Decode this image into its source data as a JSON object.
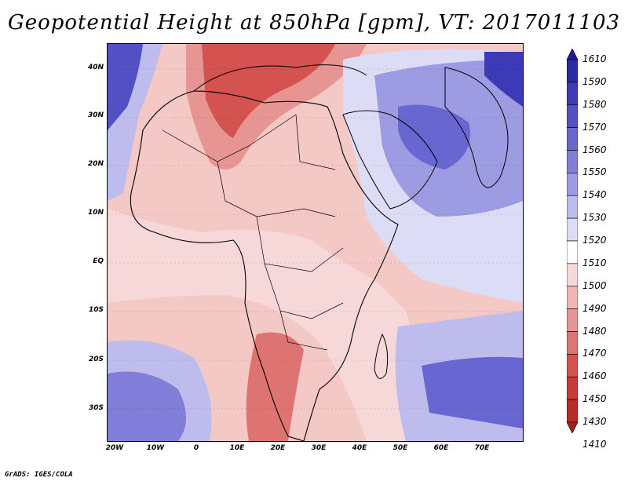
{
  "title": "Geopotential Height at 850hPa [gpm], VT: 2017011103",
  "map": {
    "lat_labels": [
      "40N",
      "30N",
      "20N",
      "10N",
      "EQ",
      "10S",
      "20S",
      "30S"
    ],
    "lon_labels": [
      "20W",
      "10W",
      "0",
      "10E",
      "20E",
      "30E",
      "40E",
      "50E",
      "60E",
      "70E"
    ],
    "field": "Geopotential Height at 850hPa",
    "units": "gpm",
    "valid_time": "2017011103"
  },
  "colorbar": {
    "levels": [
      "1610",
      "1590",
      "1580",
      "1570",
      "1560",
      "1550",
      "1540",
      "1530",
      "1520",
      "1510",
      "1500",
      "1490",
      "1480",
      "1470",
      "1460",
      "1450",
      "1430",
      "1410"
    ],
    "colors": [
      "#1f1d9a",
      "#2d2ba6",
      "#3c3ab6",
      "#5250c4",
      "#6866d0",
      "#807ed8",
      "#9d9be2",
      "#bdbced",
      "#dcdcf7",
      "#ffffff",
      "#f7d8d8",
      "#f0b6b4",
      "#e79592",
      "#de7471",
      "#d4524f",
      "#c93a37",
      "#bb2a27",
      "#a81d1b"
    ]
  },
  "credit": "GrADS: IGES/COLA"
}
